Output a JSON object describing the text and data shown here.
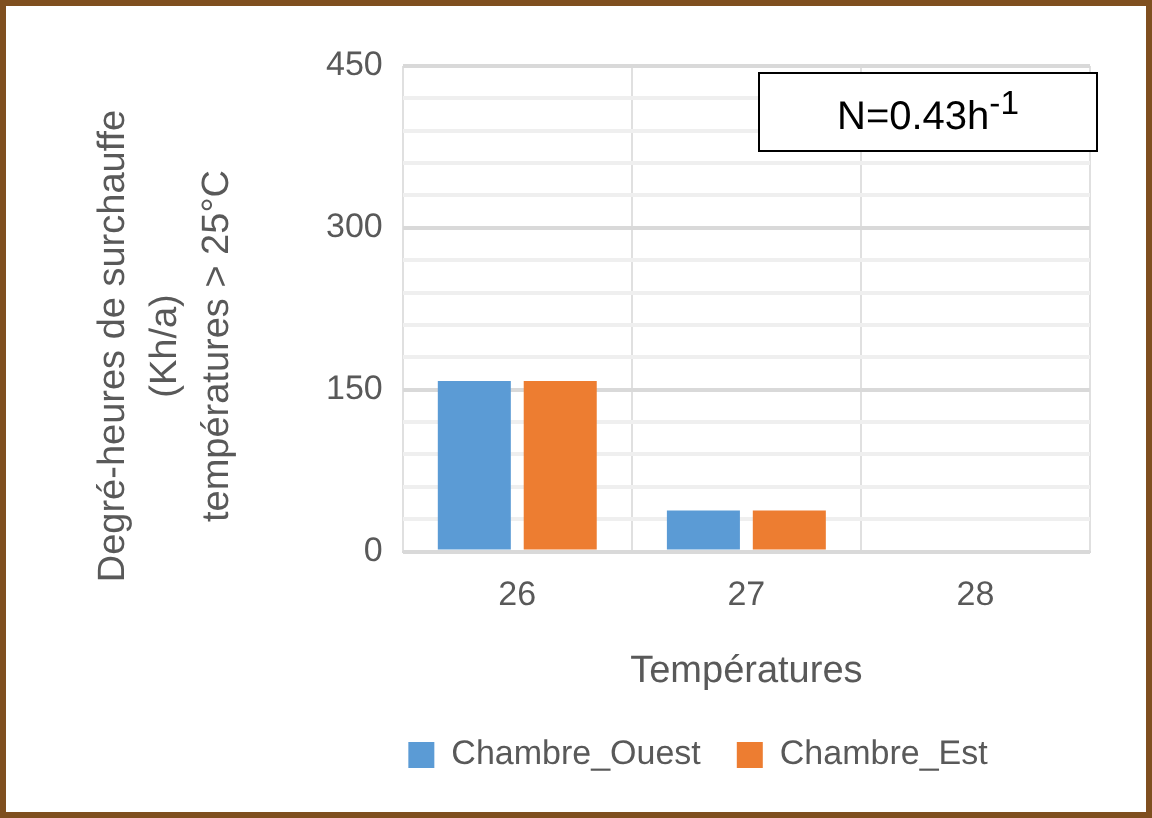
{
  "chart_data": {
    "type": "bar",
    "xlabel": "Températures",
    "ylabel": "Degré-heures de surchauffe\n(Kh/a)\ntempératures > 25°C",
    "categories": [
      "26",
      "27",
      "28"
    ],
    "series": [
      {
        "name": "Chambre_Ouest",
        "color": "#5b9bd5",
        "values": [
          158,
          38,
          0
        ]
      },
      {
        "name": "Chambre_Est",
        "color": "#ed7d31",
        "values": [
          158,
          38,
          0
        ]
      }
    ],
    "ylim": [
      0,
      450
    ],
    "yticks": [
      0,
      {
        "value": 30,
        "label": null
      },
      {
        "value": 60,
        "label": null
      },
      {
        "value": 90,
        "label": null
      },
      {
        "value": 120,
        "label": null
      },
      150,
      {
        "value": 180,
        "label": null
      },
      {
        "value": 210,
        "label": null
      },
      {
        "value": 240,
        "label": null
      },
      {
        "value": 270,
        "label": null
      },
      300,
      {
        "value": 330,
        "label": null
      },
      {
        "value": 360,
        "label": null
      },
      {
        "value": 390,
        "label": null
      },
      {
        "value": 420,
        "label": null
      },
      450
    ],
    "grid": true,
    "legend": "bottom",
    "annotations": [
      "N=0.43h$^{-1}$"
    ]
  }
}
